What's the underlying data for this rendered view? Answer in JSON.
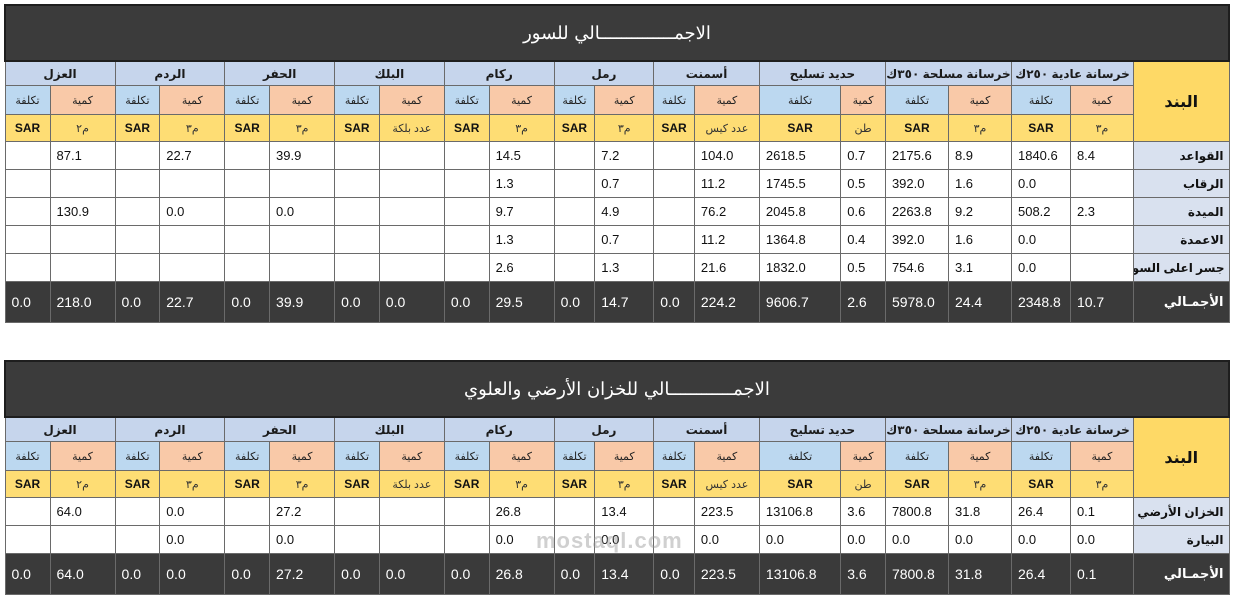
{
  "groups": [
    "خرسانة عادية ٢٥٠ك",
    "خرسانة مسلحة ٣٥٠ك",
    "حديد تسليح",
    "أسمنت",
    "رمل",
    "ركام",
    "البلك",
    "الحفر",
    "الردم",
    "العزل"
  ],
  "band_label": "البند",
  "qty_label": "كمية",
  "cost_label": "تكلفة",
  "sar_label": "SAR",
  "units": [
    "م٣",
    "م٣",
    "طن",
    "عدد كيس",
    "م٣",
    "م٣",
    "عدد بلكة",
    "م٣",
    "م٣",
    "م٢"
  ],
  "table1": {
    "title": "الاجمــــــــــــــالي للسور",
    "rows": [
      {
        "label": "القواعد",
        "vals": [
          "8.4",
          "1840.6",
          "8.9",
          "2175.6",
          "0.7",
          "2618.5",
          "104.0",
          "",
          "7.2",
          "",
          "14.5",
          "",
          "",
          "",
          "39.9",
          "",
          "22.7",
          "",
          "87.1",
          ""
        ]
      },
      {
        "label": "الرقاب",
        "vals": [
          "",
          "0.0",
          "1.6",
          "392.0",
          "0.5",
          "1745.5",
          "11.2",
          "",
          "0.7",
          "",
          "1.3",
          "",
          "",
          "",
          "",
          "",
          "",
          "",
          "",
          ""
        ]
      },
      {
        "label": "الميدة",
        "vals": [
          "2.3",
          "508.2",
          "9.2",
          "2263.8",
          "0.6",
          "2045.8",
          "76.2",
          "",
          "4.9",
          "",
          "9.7",
          "",
          "",
          "",
          "0.0",
          "",
          "0.0",
          "",
          "130.9",
          ""
        ]
      },
      {
        "label": "الاعمدة",
        "vals": [
          "",
          "0.0",
          "1.6",
          "392.0",
          "0.4",
          "1364.8",
          "11.2",
          "",
          "0.7",
          "",
          "1.3",
          "",
          "",
          "",
          "",
          "",
          "",
          "",
          "",
          ""
        ]
      },
      {
        "label": "جسر اعلى السور",
        "vals": [
          "",
          "0.0",
          "3.1",
          "754.6",
          "0.5",
          "1832.0",
          "21.6",
          "",
          "1.3",
          "",
          "2.6",
          "",
          "",
          "",
          "",
          "",
          "",
          "",
          "",
          ""
        ]
      }
    ],
    "total": {
      "label": "الأجمـالي",
      "vals": [
        "10.7",
        "2348.8",
        "24.4",
        "5978.0",
        "2.6",
        "9606.7",
        "224.2",
        "0.0",
        "14.7",
        "0.0",
        "29.5",
        "0.0",
        "0.0",
        "0.0",
        "39.9",
        "0.0",
        "22.7",
        "0.0",
        "218.0",
        "0.0"
      ]
    }
  },
  "table2": {
    "title": "الاجمــــــــــــالي للخزان الأرضي والعلوي",
    "rows": [
      {
        "label": "الخزان الأرضي",
        "vals": [
          "0.1",
          "26.4",
          "31.8",
          "7800.8",
          "3.6",
          "13106.8",
          "223.5",
          "",
          "13.4",
          "",
          "26.8",
          "",
          "",
          "",
          "27.2",
          "",
          "0.0",
          "",
          "64.0",
          ""
        ]
      },
      {
        "label": "البيارة",
        "vals": [
          "0.0",
          "0.0",
          "0.0",
          "0.0",
          "0.0",
          "0.0",
          "0.0",
          "",
          "0.0",
          "",
          "0.0",
          "",
          "",
          "",
          "0.0",
          "",
          "0.0",
          "",
          "",
          ""
        ]
      }
    ],
    "total": {
      "label": "الأجمـالي",
      "vals": [
        "0.1",
        "26.4",
        "31.8",
        "7800.8",
        "3.6",
        "13106.8",
        "223.5",
        "0.0",
        "13.4",
        "0.0",
        "26.8",
        "0.0",
        "0.0",
        "0.0",
        "27.2",
        "0.0",
        "0.0",
        "0.0",
        "64.0",
        "0.0"
      ]
    }
  },
  "watermark": "mostaql.com",
  "colors": {
    "header_dark": "#3b3b3b",
    "group_blue": "#c6d5ec",
    "qty_orange": "#f9c9a8",
    "cost_blue": "#bcd8f0",
    "band_yellow": "#fed966"
  }
}
